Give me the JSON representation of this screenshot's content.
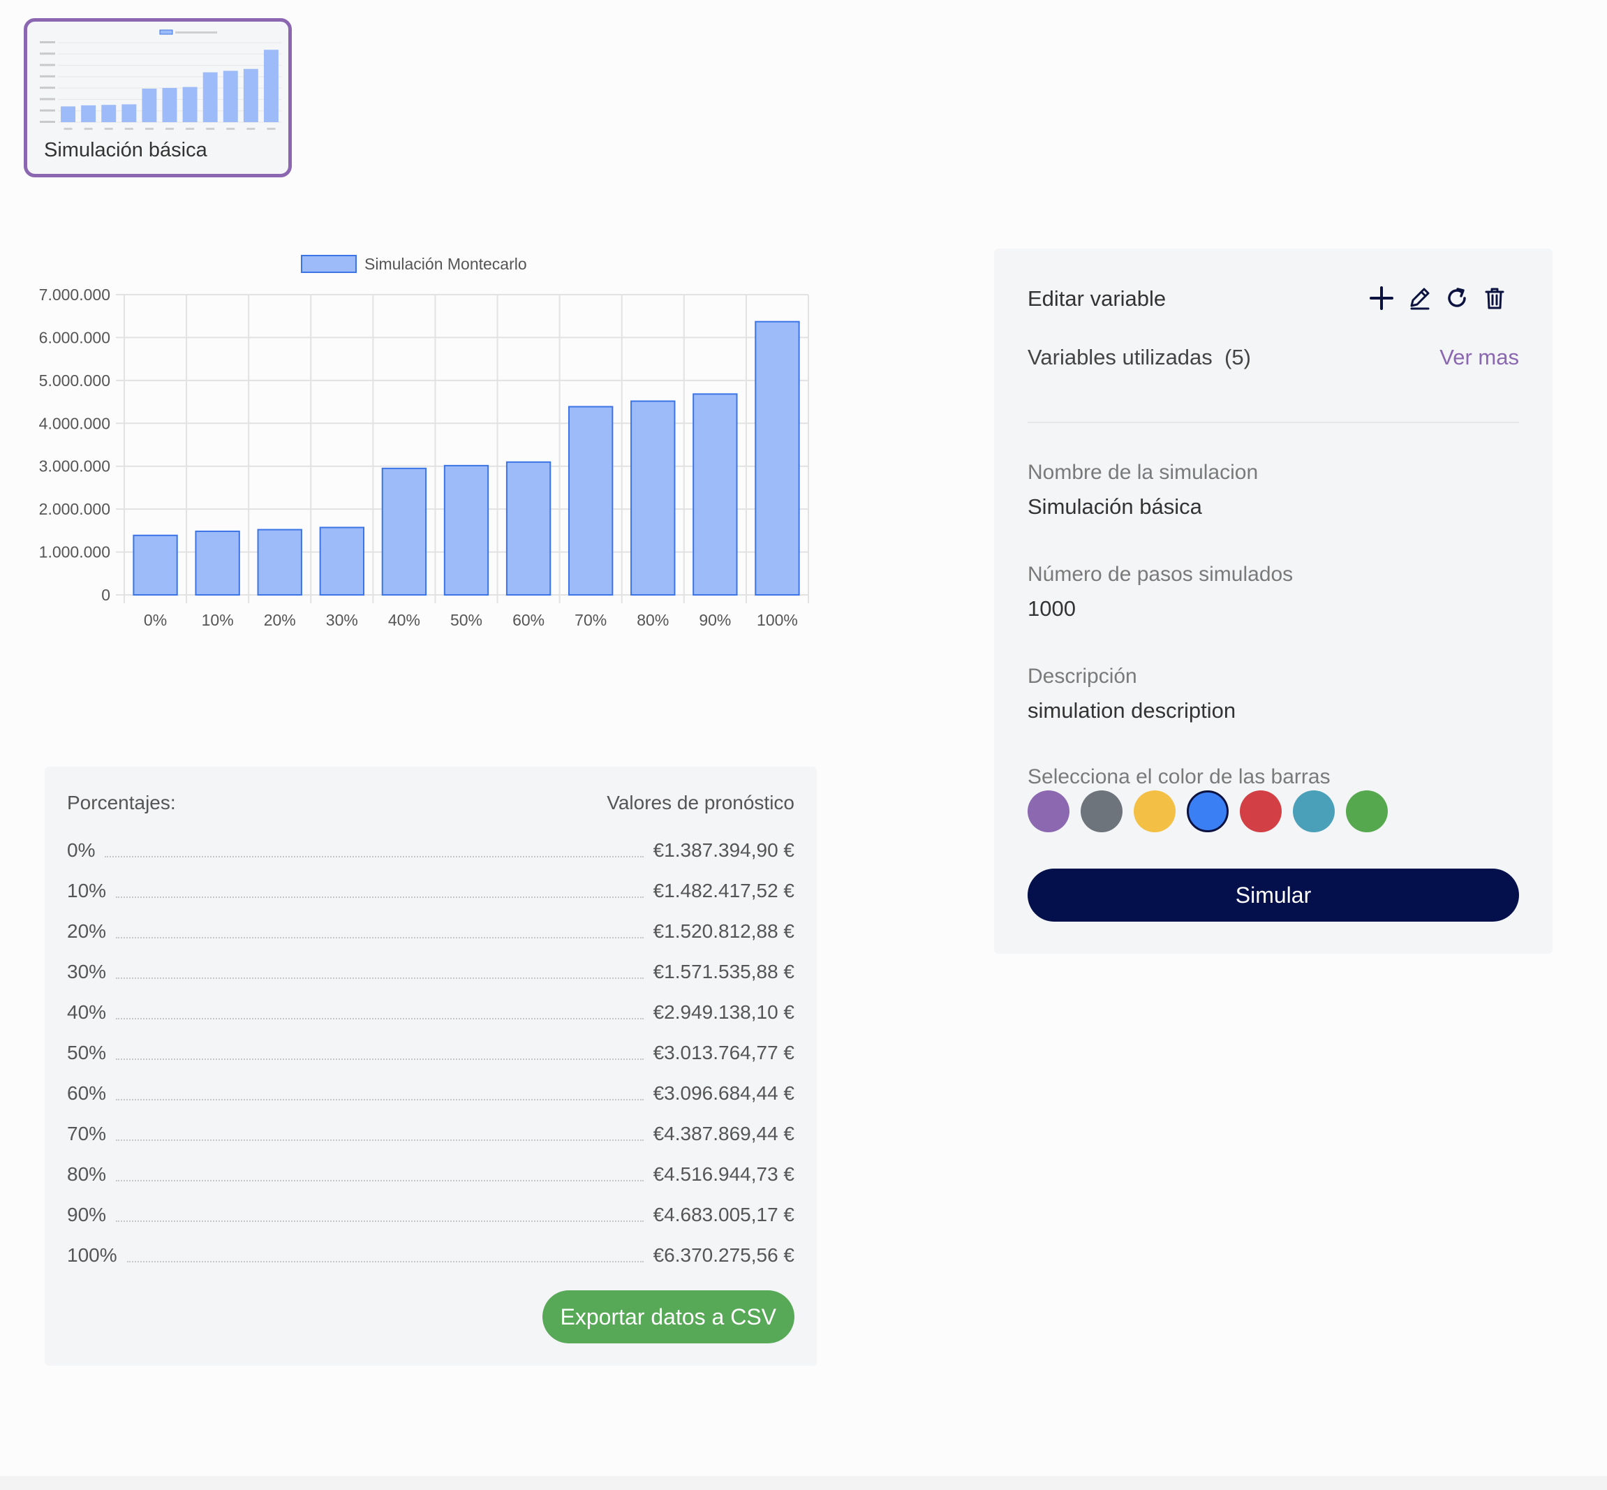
{
  "thumbnail": {
    "title": "Simulación básica",
    "values": [
      1387394.9,
      1482417.52,
      1520812.88,
      1571535.88,
      2949138.1,
      3013764.77,
      3096684.44,
      4387869.44,
      4516944.73,
      4683005.17,
      6370275.56
    ]
  },
  "chart_data": {
    "type": "bar",
    "title": "",
    "legend": [
      "Simulación Montecarlo"
    ],
    "legend_position": "top",
    "categories": [
      "0%",
      "10%",
      "20%",
      "30%",
      "40%",
      "50%",
      "60%",
      "70%",
      "80%",
      "90%",
      "100%"
    ],
    "series": [
      {
        "name": "Simulación Montecarlo",
        "values": [
          1387394.9,
          1482417.52,
          1520812.88,
          1571535.88,
          2949138.1,
          3013764.77,
          3096684.44,
          4387869.44,
          4516944.73,
          4683005.17,
          6370275.56
        ]
      }
    ],
    "ylim": [
      0,
      7000000
    ],
    "yticks": [
      0,
      1000000,
      2000000,
      3000000,
      4000000,
      5000000,
      6000000,
      7000000
    ],
    "ytick_labels": [
      "0",
      "1.000.000",
      "2.000.000",
      "3.000.000",
      "4.000.000",
      "5.000.000",
      "6.000.000",
      "7.000.000"
    ],
    "grid": true,
    "bar_fill": "#9dbbf8",
    "bar_stroke": "#3b74e6"
  },
  "forecast": {
    "header_left": "Porcentajes:",
    "header_right": "Valores de pronóstico",
    "rows": [
      {
        "pct": "0%",
        "value": "€1.387.394,90 €"
      },
      {
        "pct": "10%",
        "value": "€1.482.417,52 €"
      },
      {
        "pct": "20%",
        "value": "€1.520.812,88 €"
      },
      {
        "pct": "30%",
        "value": "€1.571.535,88 €"
      },
      {
        "pct": "40%",
        "value": "€2.949.138,10 €"
      },
      {
        "pct": "50%",
        "value": "€3.013.764,77 €"
      },
      {
        "pct": "60%",
        "value": "€3.096.684,44 €"
      },
      {
        "pct": "70%",
        "value": "€4.387.869,44 €"
      },
      {
        "pct": "80%",
        "value": "€4.516.944,73 €"
      },
      {
        "pct": "90%",
        "value": "€4.683.005,17 €"
      },
      {
        "pct": "100%",
        "value": "€6.370.275,56 €"
      }
    ],
    "export_label": "Exportar datos a CSV",
    "export_color": "#58a957"
  },
  "side": {
    "edit_label": "Editar variable",
    "icons": [
      "plus-icon",
      "pencil-icon",
      "refresh-icon",
      "trash-icon"
    ],
    "vars_label": "Variables utilizadas  (5)",
    "ver_mas": "Ver mas",
    "name_label": "Nombre de la simulacion",
    "name_value": "Simulación básica",
    "steps_label": "Número de pasos simulados",
    "steps_value": "1000",
    "desc_label": "Descripción",
    "desc_value": "simulation description",
    "color_label": "Selecciona el color de las barras",
    "colors": [
      "#8b68b0",
      "#6d747c",
      "#f3bf45",
      "#3b7ff5",
      "#d23f44",
      "#4aa0b8",
      "#56a84e"
    ],
    "selected_color": "#3b7ff5",
    "simular_label": "Simular",
    "accent": "#04104b"
  }
}
